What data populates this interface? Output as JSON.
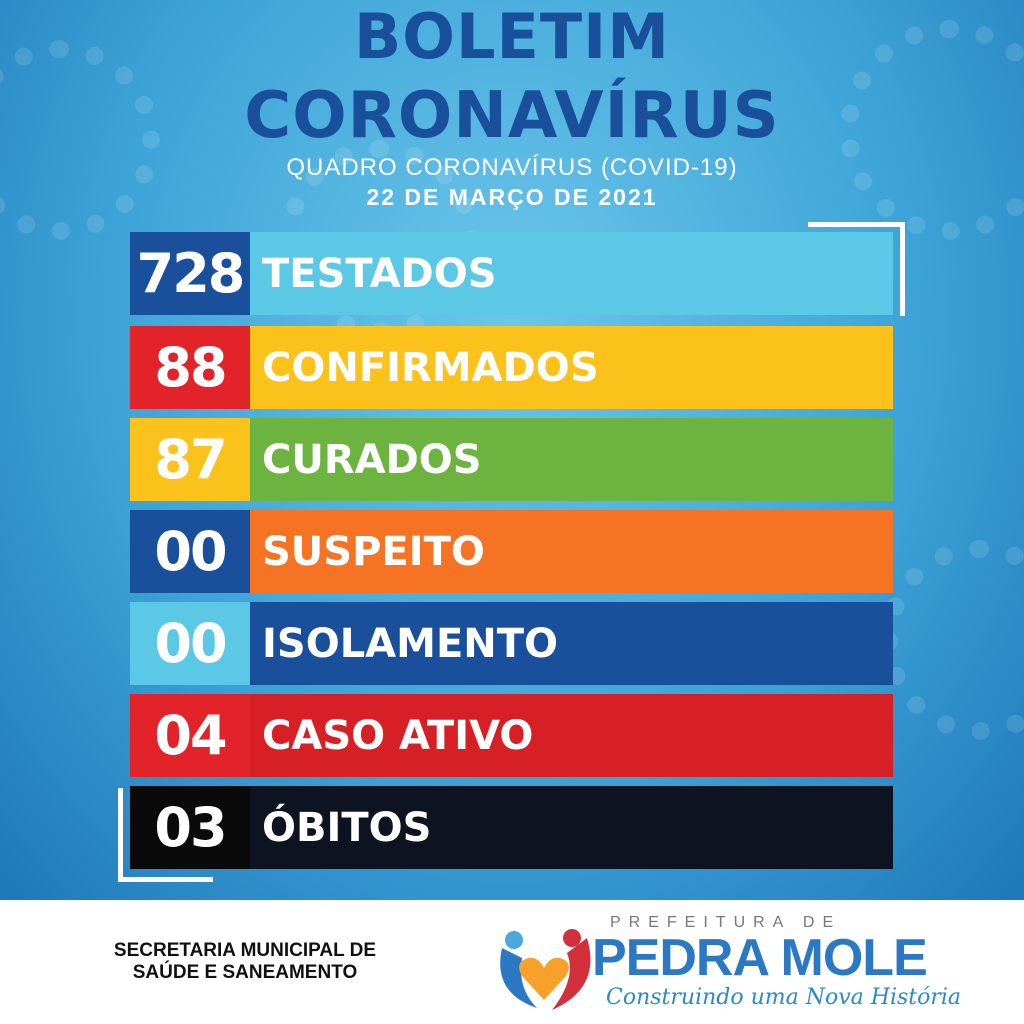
{
  "header": {
    "title_line1": "BOLETIM",
    "title_line2": "CORONAVÍRUS",
    "subtitle": "QUADRO CORONAVÍRUS (COVID-19)",
    "date": "22 DE MARÇO DE 2021"
  },
  "rows": [
    {
      "value": "728",
      "label": "TESTADOS",
      "num_color": "#1a4f9c",
      "bar_color": "#5bc8e6"
    },
    {
      "value": "88",
      "label": "CONFIRMADOS",
      "num_color": "#e3232a",
      "bar_color": "#fbc21b"
    },
    {
      "value": "87",
      "label": "CURADOS",
      "num_color": "#fbc21b",
      "bar_color": "#6db33f"
    },
    {
      "value": "00",
      "label": "SUSPEITO",
      "num_color": "#1a4f9c",
      "bar_color": "#f57322"
    },
    {
      "value": "00",
      "label": "ISOLAMENTO",
      "num_color": "#5bc8e6",
      "bar_color": "#1a4f9c"
    },
    {
      "value": "04",
      "label": "CASO ATIVO",
      "num_color": "#e3232a",
      "bar_color": "#d71f26"
    },
    {
      "value": "03",
      "label": "ÓBITOS",
      "num_color": "#0a0a0a",
      "bar_color": "#0d1320"
    }
  ],
  "footer": {
    "secretaria_line1": "SECRETARIA MUNICIPAL DE",
    "secretaria_line2": "SAÚDE E SANEAMENTO",
    "logo_prefix": "PREFEITURA DE",
    "logo_name": "PEDRA MOLE",
    "logo_slogan": "Construindo uma Nova História"
  }
}
